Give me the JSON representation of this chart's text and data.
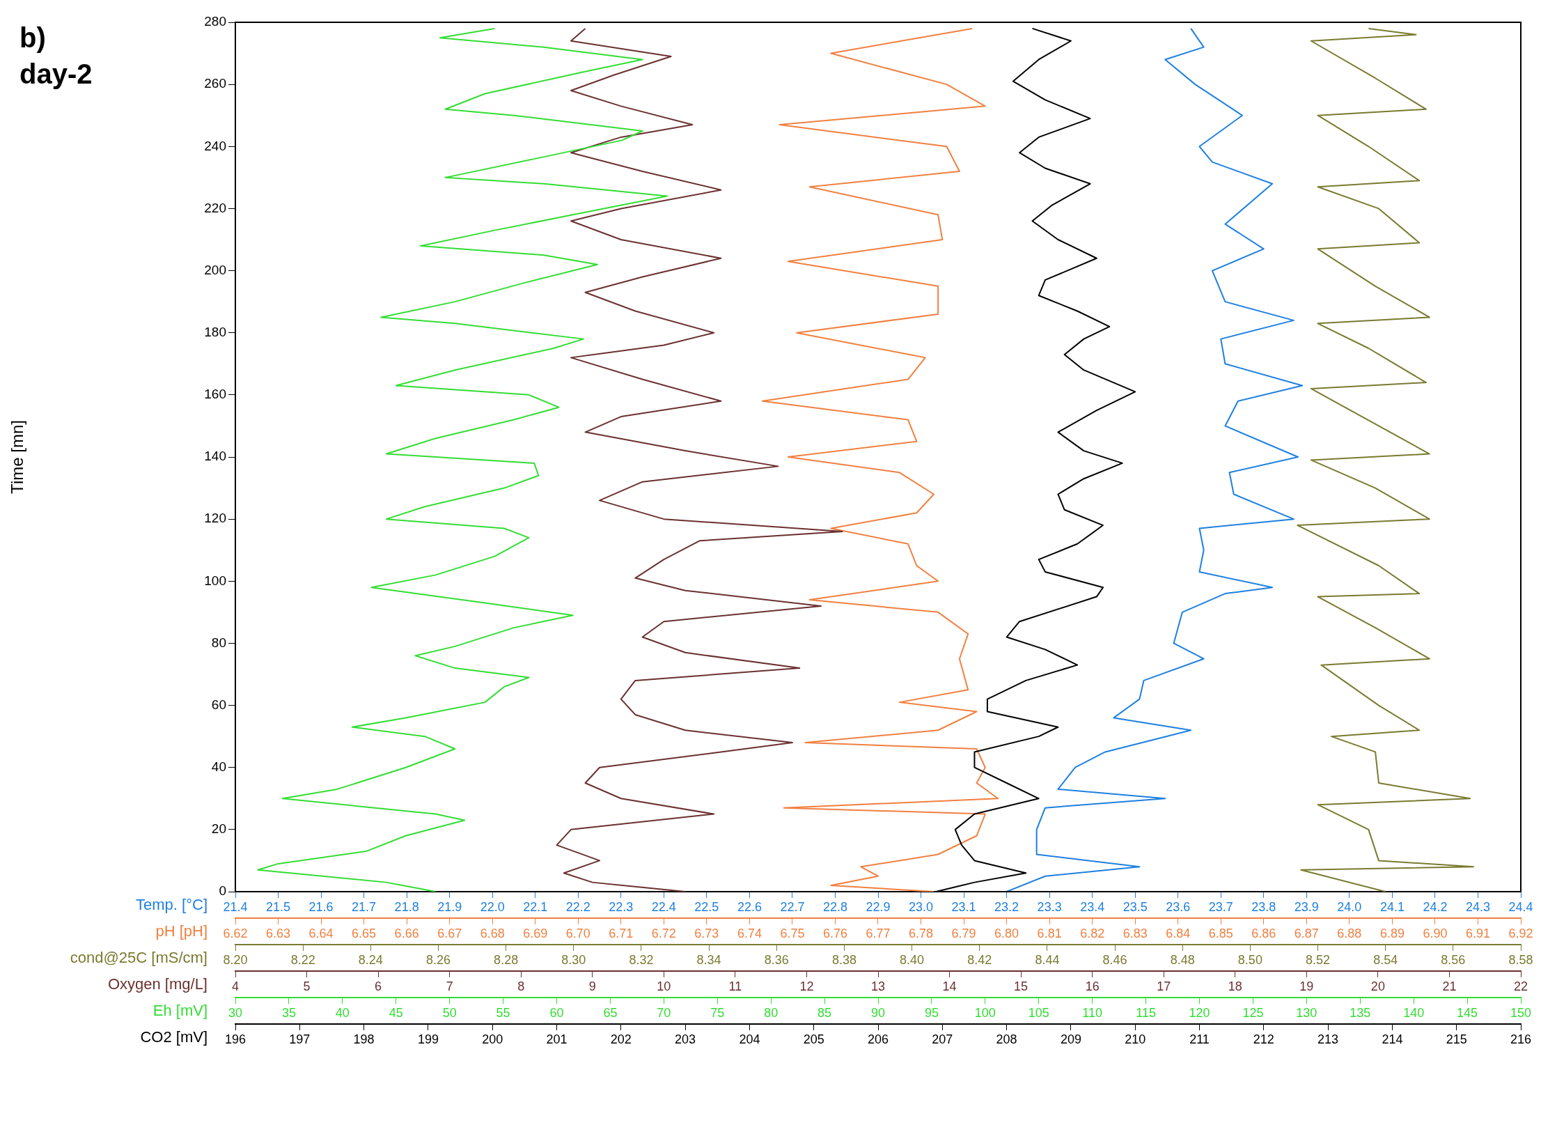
{
  "chart_data": [
    {
      "type": "line",
      "title": "b)",
      "subtitle": "day-2",
      "orientation": "horizontal",
      "ylabel": "Time [mn]",
      "ylim": [
        0,
        280
      ],
      "yticks": [
        0,
        20,
        40,
        60,
        80,
        100,
        120,
        140,
        160,
        180,
        200,
        220,
        240,
        260,
        280
      ],
      "xlabel": "Temp. [°C]",
      "xlim": [
        21.4,
        24.4
      ],
      "xticks": [
        21.4,
        21.5,
        21.6,
        21.7,
        21.8,
        21.9,
        {
          "value": 22,
          "label": "22.0"
        },
        22.1,
        22.2,
        22.3,
        22.4,
        22.5,
        22.6,
        22.7,
        22.8,
        22.9,
        {
          "value": 23,
          "label": "23.0"
        },
        23.1,
        23.2,
        23.3,
        23.4,
        23.5,
        23.6,
        23.7,
        23.8,
        23.9,
        {
          "value": 24,
          "label": "24.0"
        },
        24.1,
        24.2,
        24.3,
        24.4
      ],
      "series": [
        {
          "color": "#1e80e0",
          "x": [
            0,
            5,
            8,
            12,
            20,
            27,
            30,
            33,
            40,
            45,
            52,
            56,
            62,
            68,
            75,
            80,
            90,
            96,
            98,
            103,
            110,
            117,
            120,
            128,
            135,
            140,
            150,
            158,
            163,
            170,
            178,
            184,
            190,
            200,
            207,
            215,
            228,
            235,
            240,
            250,
            260,
            268,
            272,
            278
          ],
          "values": [
            23.2,
            23.29,
            23.51,
            23.27,
            23.27,
            23.29,
            23.57,
            23.32,
            23.36,
            23.43,
            23.63,
            23.45,
            23.51,
            23.52,
            23.66,
            23.59,
            23.61,
            23.71,
            23.82,
            23.65,
            23.66,
            23.65,
            23.87,
            23.73,
            23.72,
            23.88,
            23.71,
            23.74,
            23.89,
            23.71,
            23.7,
            23.87,
            23.71,
            23.68,
            23.8,
            23.71,
            23.82,
            23.68,
            23.65,
            23.75,
            23.64,
            23.57,
            23.66,
            23.63
          ]
        }
      ]
    },
    {
      "type": "line",
      "orientation": "horizontal",
      "ylim": [
        0,
        280
      ],
      "tick_labels": "x",
      "xlabel": "pH [pH]",
      "xlim": [
        6.62,
        6.92
      ],
      "xticks": [
        6.62,
        6.63,
        6.64,
        6.65,
        6.66,
        6.67,
        6.68,
        6.69,
        {
          "value": 6.7,
          "label": "6.70"
        },
        6.71,
        6.72,
        6.73,
        6.74,
        6.75,
        6.76,
        6.77,
        6.78,
        6.79,
        {
          "value": 6.8,
          "label": "6.80"
        },
        6.81,
        6.82,
        6.83,
        6.84,
        6.85,
        6.86,
        6.87,
        6.88,
        6.89,
        {
          "value": 6.9,
          "label": "6.90"
        },
        6.91,
        6.92
      ],
      "series": [
        {
          "color": "#f08040",
          "x": [
            0,
            2,
            5,
            8,
            12,
            18,
            25,
            27,
            30,
            35,
            40,
            46,
            48,
            52,
            58,
            61,
            65,
            75,
            83,
            90,
            94,
            100,
            105,
            112,
            117,
            122,
            128,
            135,
            140,
            145,
            152,
            158,
            165,
            172,
            180,
            186,
            195,
            203,
            210,
            218,
            227,
            232,
            240,
            247,
            253,
            260,
            270,
            278
          ],
          "values": [
            6.783,
            6.759,
            6.77,
            6.766,
            6.784,
            6.793,
            6.795,
            6.748,
            6.798,
            6.793,
            6.795,
            6.793,
            6.753,
            6.784,
            6.793,
            6.775,
            6.791,
            6.789,
            6.791,
            6.784,
            6.754,
            6.784,
            6.779,
            6.777,
            6.759,
            6.779,
            6.783,
            6.775,
            6.749,
            6.779,
            6.777,
            6.743,
            6.777,
            6.781,
            6.751,
            6.784,
            6.784,
            6.749,
            6.785,
            6.784,
            6.754,
            6.789,
            6.786,
            6.747,
            6.795,
            6.786,
            6.759,
            6.792
          ]
        }
      ]
    },
    {
      "type": "line",
      "orientation": "horizontal",
      "ylim": [
        0,
        280
      ],
      "tick_labels": "x",
      "xlabel": "cond@25C [mS/cm]",
      "xlim": [
        8.2,
        8.58
      ],
      "xticks": [
        {
          "value": 8.2,
          "label": "8.20"
        },
        8.22,
        8.24,
        8.26,
        8.28,
        {
          "value": 8.3,
          "label": "8.30"
        },
        8.32,
        8.34,
        8.36,
        8.38,
        {
          "value": 8.4,
          "label": "8.40"
        },
        8.42,
        8.44,
        8.46,
        8.48,
        {
          "value": 8.5,
          "label": "8.50"
        },
        8.52,
        8.54,
        8.56,
        8.58
      ],
      "series": [
        {
          "color": "#7a7a30",
          "x": [
            0,
            7,
            8,
            10,
            20,
            28,
            30,
            35,
            45,
            50,
            52,
            60,
            73,
            75,
            85,
            95,
            96,
            105,
            118,
            120,
            130,
            139,
            141,
            150,
            162,
            164,
            175,
            183,
            185,
            195,
            207,
            209,
            220,
            227,
            229,
            240,
            250,
            252,
            262,
            274,
            276,
            278
          ],
          "values": [
            8.54,
            8.515,
            8.566,
            8.538,
            8.535,
            8.52,
            8.565,
            8.538,
            8.537,
            8.524,
            8.55,
            8.538,
            8.521,
            8.553,
            8.537,
            8.52,
            8.55,
            8.538,
            8.514,
            8.553,
            8.537,
            8.518,
            8.553,
            8.538,
            8.518,
            8.552,
            8.535,
            8.52,
            8.553,
            8.537,
            8.52,
            8.55,
            8.538,
            8.52,
            8.55,
            8.535,
            8.52,
            8.552,
            8.537,
            8.518,
            8.549,
            8.535
          ]
        }
      ]
    },
    {
      "type": "line",
      "orientation": "horizontal",
      "ylim": [
        0,
        280
      ],
      "tick_labels": "x",
      "xlabel": "Oxygen [mg/L]",
      "xlim": [
        4,
        22
      ],
      "xticks": [
        4,
        5,
        6,
        7,
        8,
        9,
        10,
        11,
        12,
        13,
        14,
        15,
        16,
        17,
        18,
        19,
        20,
        21,
        22
      ],
      "series": [
        {
          "color": "#6b3030",
          "x": [
            0,
            3,
            6,
            10,
            15,
            20,
            25,
            30,
            35,
            40,
            45,
            48,
            52,
            57,
            62,
            68,
            72,
            77,
            82,
            87,
            92,
            97,
            101,
            107,
            113,
            116,
            120,
            126,
            132,
            137,
            142,
            148,
            153,
            158,
            165,
            172,
            176,
            180,
            187,
            193,
            198,
            204,
            210,
            216,
            220,
            226,
            232,
            238,
            243,
            247,
            253,
            258,
            263,
            269,
            274,
            278
          ],
          "values": [
            10.3,
            9,
            8.6,
            9.1,
            8.5,
            8.7,
            10.7,
            9.4,
            8.9,
            9.1,
            10.8,
            11.8,
            10.3,
            9.6,
            9.4,
            9.6,
            11.9,
            10.3,
            9.7,
            10,
            12.2,
            10.3,
            9.6,
            10,
            10.5,
            12.5,
            10,
            9.1,
            9.7,
            11.6,
            10.3,
            8.9,
            9.4,
            10.8,
            9.7,
            8.7,
            10,
            10.7,
            9.6,
            8.9,
            9.7,
            10.8,
            9.4,
            8.7,
            9.4,
            10.8,
            9.7,
            8.7,
            9.4,
            10.4,
            9.4,
            8.7,
            9.3,
            10.1,
            8.7,
            8.9
          ]
        }
      ]
    },
    {
      "type": "line",
      "orientation": "horizontal",
      "ylim": [
        0,
        280
      ],
      "tick_labels": "x",
      "xlabel": "Eh [mV]",
      "xlim": [
        30,
        150
      ],
      "xticks": [
        30,
        35,
        40,
        45,
        50,
        55,
        60,
        65,
        70,
        75,
        80,
        85,
        90,
        95,
        100,
        105,
        110,
        115,
        120,
        125,
        130,
        135,
        140,
        145,
        150
      ],
      "series": [
        {
          "color": "#33dd33",
          "x": [
            0,
            3,
            7,
            9,
            13,
            18,
            23,
            25,
            30,
            33,
            40,
            46,
            50,
            53,
            56,
            61,
            66,
            69,
            72,
            76,
            79,
            85,
            89,
            93,
            98,
            102,
            108,
            114,
            117,
            120,
            124,
            130,
            134,
            138,
            141,
            146,
            152,
            156,
            160,
            163,
            168,
            175,
            178,
            183,
            185,
            190,
            196,
            202,
            205,
            208,
            213,
            218,
            224,
            228,
            230,
            236,
            242,
            245,
            250,
            252,
            257,
            264,
            268,
            272,
            275,
            278
          ],
          "values": [
            48.7,
            44.1,
            32.1,
            34,
            42.2,
            45.9,
            51.4,
            48.7,
            34.4,
            39.5,
            45.9,
            50.5,
            47.7,
            40.9,
            45.9,
            53.3,
            55.1,
            57.4,
            50.5,
            46.8,
            50.5,
            56,
            61.5,
            53.3,
            42.7,
            48.7,
            54.2,
            57.4,
            55.1,
            44.1,
            47.7,
            55.1,
            58.3,
            57.9,
            44.1,
            48.7,
            56,
            60.2,
            57.4,
            45,
            50.5,
            59.7,
            62.5,
            50.5,
            43.6,
            50.5,
            56.9,
            63.8,
            58.8,
            47.3,
            54.2,
            61.5,
            70.3,
            58.8,
            49.6,
            57.9,
            66.1,
            68,
            56,
            49.6,
            53.3,
            62.5,
            68,
            58.8,
            49.1,
            54.2
          ]
        }
      ]
    },
    {
      "type": "line",
      "orientation": "horizontal",
      "ylim": [
        0,
        280
      ],
      "tick_labels": "x",
      "xlabel": "CO2 [mV]",
      "xlim": [
        196,
        216
      ],
      "xticks": [
        196,
        197,
        198,
        199,
        200,
        201,
        202,
        203,
        204,
        205,
        206,
        207,
        208,
        209,
        210,
        211,
        212,
        213,
        214,
        215,
        216
      ],
      "series": [
        {
          "color": "#000000",
          "x": [
            0,
            3,
            6,
            10,
            15,
            20,
            25,
            30,
            35,
            40,
            45,
            50,
            53,
            58,
            62,
            68,
            73,
            78,
            82,
            87,
            95,
            98,
            103,
            107,
            112,
            118,
            123,
            128,
            133,
            138,
            142,
            148,
            155,
            161,
            168,
            173,
            178,
            182,
            187,
            192,
            197,
            204,
            210,
            216,
            221,
            228,
            233,
            238,
            243,
            249,
            255,
            261,
            268,
            274,
            278
          ],
          "values": [
            206.9,
            207.5,
            208.3,
            207.5,
            207.3,
            207.2,
            207.5,
            208.5,
            208,
            207.5,
            207.5,
            208.5,
            208.8,
            207.7,
            207.7,
            208.3,
            209.1,
            208.6,
            208,
            208.2,
            209.4,
            209.5,
            208.6,
            208.5,
            209.1,
            209.5,
            208.9,
            208.8,
            209.2,
            209.8,
            209.2,
            208.8,
            209.4,
            210,
            209.2,
            208.9,
            209.2,
            209.6,
            209.1,
            208.5,
            208.6,
            209.4,
            208.8,
            208.4,
            208.7,
            209.3,
            208.6,
            208.2,
            208.5,
            209.3,
            208.6,
            208.1,
            208.5,
            209,
            208.4
          ]
        }
      ]
    }
  ]
}
